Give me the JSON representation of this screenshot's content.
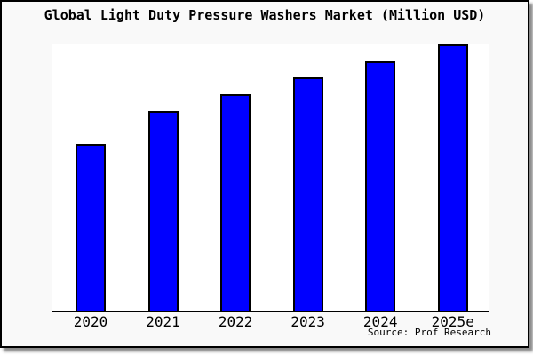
{
  "chart_data": {
    "type": "bar",
    "title": "Global Light Duty Pressure Washers Market (Million USD)",
    "categories": [
      "2020",
      "2021",
      "2022",
      "2023",
      "2024",
      "2025e"
    ],
    "values": [
      62.7,
      75.0,
      81.3,
      87.7,
      93.7,
      100.0
    ],
    "xlabel": "",
    "ylabel": "",
    "ylim": [
      0,
      100
    ],
    "grid": false,
    "legend": false,
    "y_axis_labels_visible": false,
    "source_credit": "Source: Prof Research"
  },
  "colors": {
    "bar_fill": "#0000ff",
    "bar_border": "#000000",
    "figure_background": "#f9f9f9",
    "plot_background": "#ffffff",
    "frame_border": "#000000",
    "shadow": "#8a8a8a",
    "text": "#000000"
  }
}
